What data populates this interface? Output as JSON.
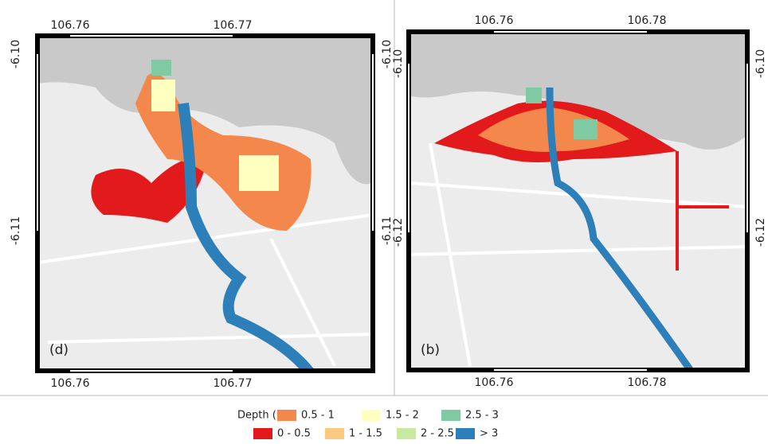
{
  "panels": [
    {
      "label": "(d)",
      "x_ticks": [
        "106.76",
        "106.77"
      ],
      "y_ticks": [
        "-6.10",
        "-6.11"
      ]
    },
    {
      "label": "(b)",
      "x_ticks": [
        "106.76",
        "106.78"
      ],
      "y_ticks": [
        "-6.10",
        "-6.12"
      ]
    }
  ],
  "legend": {
    "title": "Depth (m)",
    "items": [
      {
        "label": "0 - 0.5",
        "color": "#e31a1c"
      },
      {
        "label": "0.5 - 1",
        "color": "#f4874b"
      },
      {
        "label": "1 - 1.5",
        "color": "#fdc97f"
      },
      {
        "label": "1.5 - 2",
        "color": "#ffffbf"
      },
      {
        "label": "2 - 2.5",
        "color": "#c7e9a0"
      },
      {
        "label": "2.5 - 3",
        "color": "#7fc9a3"
      },
      {
        "label": "> 3",
        "color": "#2c7fb8"
      }
    ]
  }
}
